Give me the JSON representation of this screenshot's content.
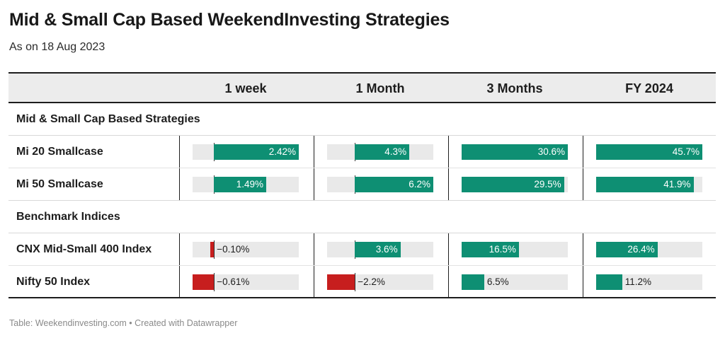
{
  "title": "Mid & Small Cap Based WeekendInvesting Strategies",
  "subtitle": "As on 18 Aug 2023",
  "footer": "Table: Weekendinvesting.com • Created with Datawrapper",
  "colors": {
    "positive": "#0e8f73",
    "negative": "#c71e1e",
    "track": "#e9e9e9"
  },
  "chart_data": {
    "type": "table",
    "columns": [
      "1 week",
      "1 Month",
      "3 Months",
      "FY 2024"
    ],
    "groups": [
      {
        "label": "Mid & Small Cap Based Strategies",
        "rows": [
          {
            "name": "Mi 20 Smallcase",
            "values": [
              2.42,
              4.3,
              30.6,
              45.7
            ],
            "labels": [
              "2.42%",
              "4.3%",
              "30.6%",
              "45.7%"
            ]
          },
          {
            "name": "Mi 50 Smallcase",
            "values": [
              1.49,
              6.2,
              29.5,
              41.9
            ],
            "labels": [
              "1.49%",
              "6.2%",
              "29.5%",
              "41.9%"
            ]
          }
        ]
      },
      {
        "label": "Benchmark Indices",
        "rows": [
          {
            "name": "CNX Mid-Small 400 Index",
            "values": [
              -0.1,
              3.6,
              16.5,
              26.4
            ],
            "labels": [
              "−0.10%",
              "3.6%",
              "16.5%",
              "26.4%"
            ]
          },
          {
            "name": "Nifty 50 Index",
            "values": [
              -0.61,
              -2.2,
              6.5,
              11.2
            ],
            "labels": [
              "−0.61%",
              "−2.2%",
              "6.5%",
              "11.2%"
            ]
          }
        ]
      }
    ],
    "column_ranges": [
      [
        -0.61,
        2.42
      ],
      [
        -2.2,
        6.2
      ],
      [
        0,
        30.6
      ],
      [
        0,
        45.7
      ]
    ]
  }
}
